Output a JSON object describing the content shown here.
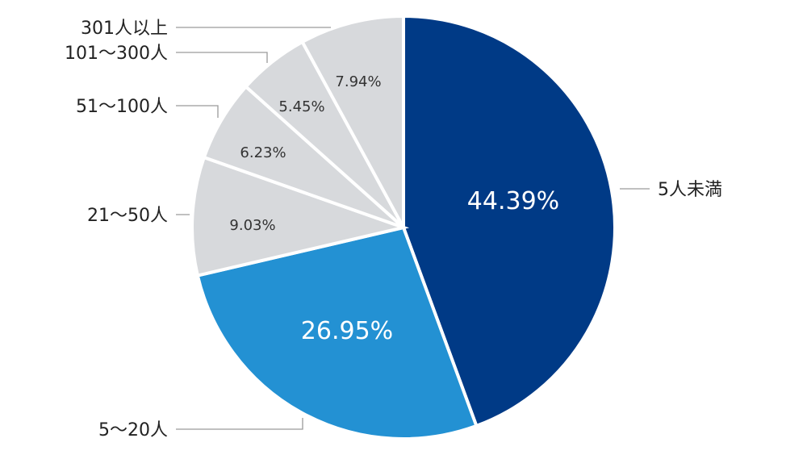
{
  "chart_data": {
    "type": "pie",
    "title": "",
    "categories": [
      "5人未満",
      "5〜20人",
      "21〜50人",
      "51〜100人",
      "101〜300人",
      "301人以上"
    ],
    "values": [
      44.39,
      26.95,
      9.03,
      6.23,
      5.45,
      7.94
    ],
    "value_labels": [
      "44.39%",
      "26.95%",
      "9.03%",
      "6.23%",
      "5.45%",
      "7.94%"
    ],
    "colors": [
      "#003a86",
      "#2391d3",
      "#d7d9dc",
      "#d7d9dc",
      "#d7d9dc",
      "#d7d9dc"
    ],
    "start_angle_deg": 0,
    "direction": "clockwise",
    "legend": "none"
  }
}
